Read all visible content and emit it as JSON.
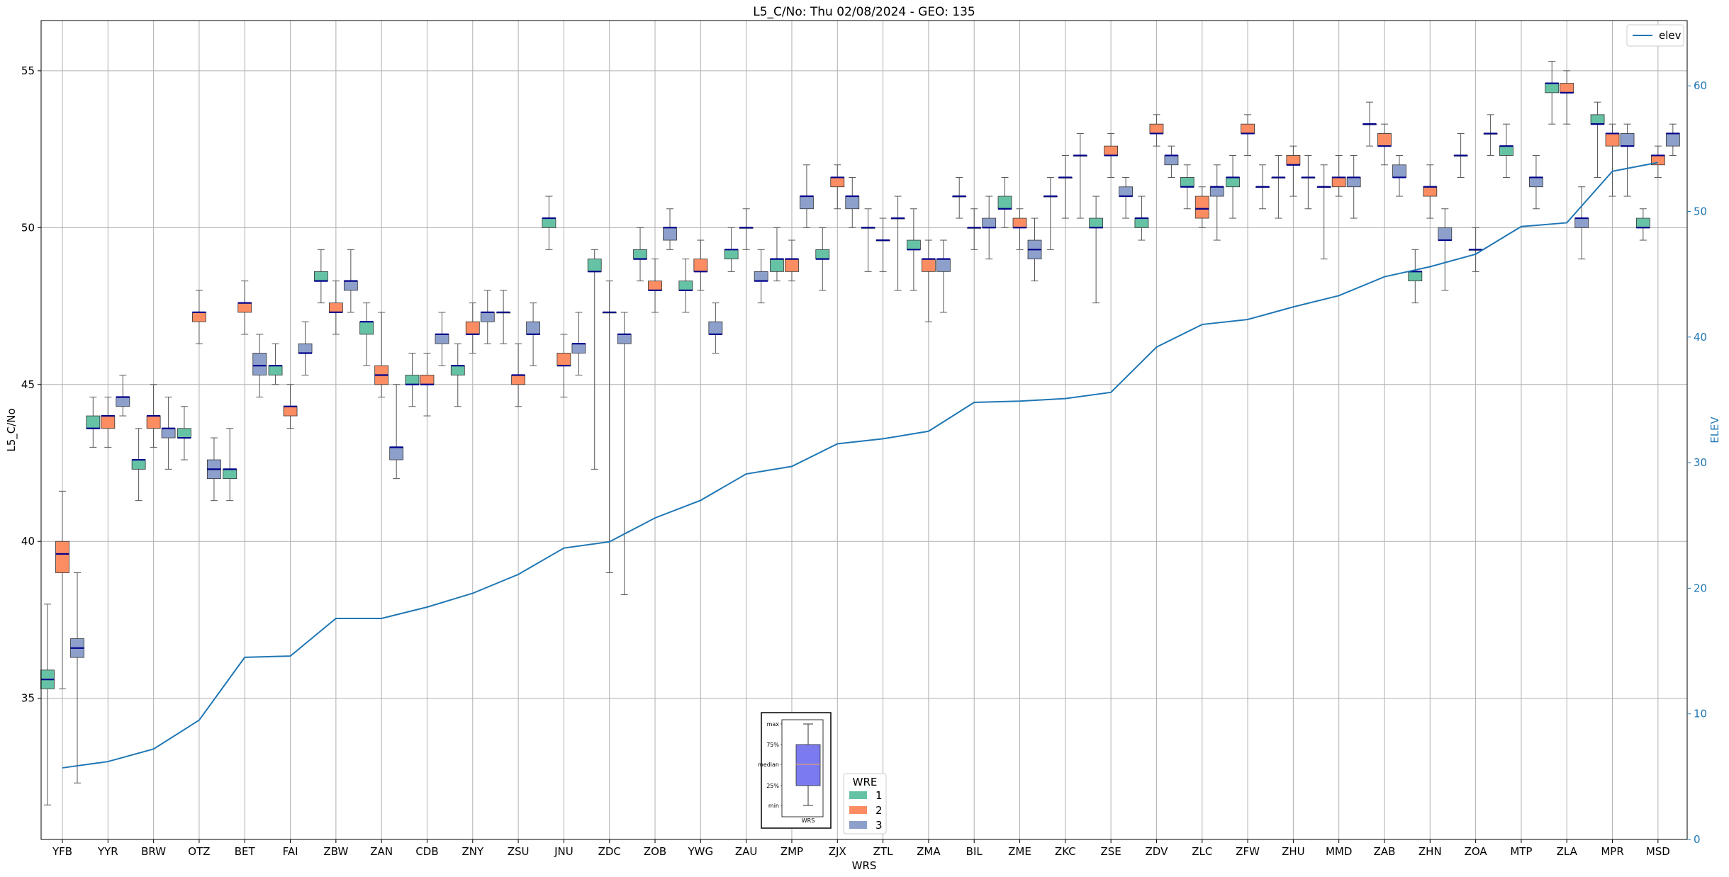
{
  "chart_data": {
    "type": "box",
    "title": "L5_C/No: Thu 02/08/2024 - GEO: 135",
    "xlabel": "WRS",
    "ylabel": "L5_C/No",
    "y2label": "ELEV",
    "ylim": [
      30.5,
      56.6
    ],
    "y2lim": [
      0,
      65.2
    ],
    "yticks": [
      35,
      40,
      45,
      50,
      55
    ],
    "y2ticks": [
      0,
      10,
      20,
      30,
      40,
      50,
      60
    ],
    "grid": true,
    "categories": [
      "YFB",
      "YYR",
      "BRW",
      "OTZ",
      "BET",
      "FAI",
      "ZBW",
      "ZAN",
      "CDB",
      "ZNY",
      "ZSU",
      "JNU",
      "ZDC",
      "ZOB",
      "YWG",
      "ZAU",
      "ZMP",
      "ZJX",
      "ZTL",
      "ZMA",
      "BIL",
      "ZME",
      "ZKC",
      "ZSE",
      "ZDV",
      "ZLC",
      "ZFW",
      "ZHU",
      "MMD",
      "ZAB",
      "ZHN",
      "ZOA",
      "MTP",
      "ZLA",
      "MPR",
      "MSD"
    ],
    "wre_colors": {
      "1": "#66c2a5",
      "2": "#fc8d62",
      "3": "#8da0cb"
    },
    "median_color": "#00008b",
    "boxes": [
      {
        "cat": "YFB",
        "wre": "1",
        "min": 31.6,
        "q1": 35.3,
        "median": 35.6,
        "q3": 35.9,
        "max": 38.0
      },
      {
        "cat": "YFB",
        "wre": "2",
        "min": 35.3,
        "q1": 39.0,
        "median": 39.6,
        "q3": 40.0,
        "max": 41.6
      },
      {
        "cat": "YFB",
        "wre": "3",
        "min": 32.3,
        "q1": 36.3,
        "median": 36.6,
        "q3": 36.9,
        "max": 39.0
      },
      {
        "cat": "YYR",
        "wre": "1",
        "min": 43.0,
        "q1": 43.6,
        "median": 43.6,
        "q3": 44.0,
        "max": 44.6
      },
      {
        "cat": "YYR",
        "wre": "2",
        "min": 43.0,
        "q1": 43.6,
        "median": 44.0,
        "q3": 44.0,
        "max": 44.6
      },
      {
        "cat": "YYR",
        "wre": "3",
        "min": 44.0,
        "q1": 44.3,
        "median": 44.6,
        "q3": 44.6,
        "max": 45.3
      },
      {
        "cat": "BRW",
        "wre": "1",
        "min": 41.3,
        "q1": 42.3,
        "median": 42.6,
        "q3": 42.6,
        "max": 43.6
      },
      {
        "cat": "BRW",
        "wre": "2",
        "min": 43.0,
        "q1": 43.6,
        "median": 44.0,
        "q3": 44.0,
        "max": 45.0
      },
      {
        "cat": "BRW",
        "wre": "3",
        "min": 42.3,
        "q1": 43.3,
        "median": 43.6,
        "q3": 43.6,
        "max": 44.6
      },
      {
        "cat": "OTZ",
        "wre": "1",
        "min": 42.6,
        "q1": 43.3,
        "median": 43.3,
        "q3": 43.6,
        "max": 44.3
      },
      {
        "cat": "OTZ",
        "wre": "2",
        "min": 46.3,
        "q1": 47.0,
        "median": 47.3,
        "q3": 47.3,
        "max": 48.0
      },
      {
        "cat": "OTZ",
        "wre": "3",
        "min": 41.3,
        "q1": 42.0,
        "median": 42.3,
        "q3": 42.6,
        "max": 43.3
      },
      {
        "cat": "BET",
        "wre": "1",
        "min": 41.3,
        "q1": 42.0,
        "median": 42.3,
        "q3": 42.3,
        "max": 43.6
      },
      {
        "cat": "BET",
        "wre": "2",
        "min": 46.6,
        "q1": 47.3,
        "median": 47.6,
        "q3": 47.6,
        "max": 48.3
      },
      {
        "cat": "BET",
        "wre": "3",
        "min": 44.6,
        "q1": 45.3,
        "median": 45.6,
        "q3": 46.0,
        "max": 46.6
      },
      {
        "cat": "FAI",
        "wre": "1",
        "min": 45.0,
        "q1": 45.3,
        "median": 45.6,
        "q3": 45.6,
        "max": 46.3
      },
      {
        "cat": "FAI",
        "wre": "2",
        "min": 43.6,
        "q1": 44.0,
        "median": 44.3,
        "q3": 44.3,
        "max": 45.0
      },
      {
        "cat": "FAI",
        "wre": "3",
        "min": 45.3,
        "q1": 46.0,
        "median": 46.0,
        "q3": 46.3,
        "max": 47.0
      },
      {
        "cat": "ZBW",
        "wre": "1",
        "min": 47.6,
        "q1": 48.3,
        "median": 48.3,
        "q3": 48.6,
        "max": 49.3
      },
      {
        "cat": "ZBW",
        "wre": "2",
        "min": 46.6,
        "q1": 47.3,
        "median": 47.3,
        "q3": 47.6,
        "max": 48.3
      },
      {
        "cat": "ZBW",
        "wre": "3",
        "min": 47.3,
        "q1": 48.0,
        "median": 48.3,
        "q3": 48.3,
        "max": 49.3
      },
      {
        "cat": "ZAN",
        "wre": "1",
        "min": 45.6,
        "q1": 46.6,
        "median": 47.0,
        "q3": 47.0,
        "max": 47.6
      },
      {
        "cat": "ZAN",
        "wre": "2",
        "min": 44.6,
        "q1": 45.0,
        "median": 45.3,
        "q3": 45.6,
        "max": 47.3
      },
      {
        "cat": "ZAN",
        "wre": "3",
        "min": 42.0,
        "q1": 42.6,
        "median": 43.0,
        "q3": 43.0,
        "max": 45.0
      },
      {
        "cat": "CDB",
        "wre": "1",
        "min": 44.3,
        "q1": 45.0,
        "median": 45.0,
        "q3": 45.3,
        "max": 46.0
      },
      {
        "cat": "CDB",
        "wre": "2",
        "min": 44.0,
        "q1": 45.0,
        "median": 45.0,
        "q3": 45.3,
        "max": 46.0
      },
      {
        "cat": "CDB",
        "wre": "3",
        "min": 45.6,
        "q1": 46.3,
        "median": 46.6,
        "q3": 46.6,
        "max": 47.3
      },
      {
        "cat": "ZNY",
        "wre": "1",
        "min": 44.3,
        "q1": 45.3,
        "median": 45.6,
        "q3": 45.6,
        "max": 46.3
      },
      {
        "cat": "ZNY",
        "wre": "2",
        "min": 46.0,
        "q1": 46.6,
        "median": 46.6,
        "q3": 47.0,
        "max": 47.6
      },
      {
        "cat": "ZNY",
        "wre": "3",
        "min": 46.3,
        "q1": 47.0,
        "median": 47.3,
        "q3": 47.3,
        "max": 48.0
      },
      {
        "cat": "ZSU",
        "wre": "1",
        "min": 46.3,
        "q1": 47.3,
        "median": 47.3,
        "q3": 47.3,
        "max": 48.0
      },
      {
        "cat": "ZSU",
        "wre": "2",
        "min": 44.3,
        "q1": 45.0,
        "median": 45.3,
        "q3": 45.3,
        "max": 46.3
      },
      {
        "cat": "ZSU",
        "wre": "3",
        "min": 45.6,
        "q1": 46.6,
        "median": 46.6,
        "q3": 47.0,
        "max": 47.6
      },
      {
        "cat": "JNU",
        "wre": "1",
        "min": 49.3,
        "q1": 50.0,
        "median": 50.3,
        "q3": 50.3,
        "max": 51.0
      },
      {
        "cat": "JNU",
        "wre": "2",
        "min": 44.6,
        "q1": 45.6,
        "median": 45.6,
        "q3": 46.0,
        "max": 46.6
      },
      {
        "cat": "JNU",
        "wre": "3",
        "min": 45.3,
        "q1": 46.0,
        "median": 46.3,
        "q3": 46.3,
        "max": 47.3
      },
      {
        "cat": "ZDC",
        "wre": "1",
        "min": 42.3,
        "q1": 48.6,
        "median": 48.6,
        "q3": 49.0,
        "max": 49.3
      },
      {
        "cat": "ZDC",
        "wre": "2",
        "min": 39.0,
        "q1": 47.3,
        "median": 47.3,
        "q3": 47.3,
        "max": 48.3
      },
      {
        "cat": "ZDC",
        "wre": "3",
        "min": 38.3,
        "q1": 46.3,
        "median": 46.6,
        "q3": 46.6,
        "max": 47.3
      },
      {
        "cat": "ZOB",
        "wre": "1",
        "min": 48.3,
        "q1": 49.0,
        "median": 49.0,
        "q3": 49.3,
        "max": 50.0
      },
      {
        "cat": "ZOB",
        "wre": "2",
        "min": 47.3,
        "q1": 48.0,
        "median": 48.0,
        "q3": 48.3,
        "max": 49.0
      },
      {
        "cat": "ZOB",
        "wre": "3",
        "min": 49.3,
        "q1": 49.6,
        "median": 50.0,
        "q3": 50.0,
        "max": 50.6
      },
      {
        "cat": "YWG",
        "wre": "1",
        "min": 47.3,
        "q1": 48.0,
        "median": 48.0,
        "q3": 48.3,
        "max": 49.0
      },
      {
        "cat": "YWG",
        "wre": "2",
        "min": 48.0,
        "q1": 48.6,
        "median": 48.6,
        "q3": 49.0,
        "max": 49.6
      },
      {
        "cat": "YWG",
        "wre": "3",
        "min": 46.0,
        "q1": 46.6,
        "median": 46.6,
        "q3": 47.0,
        "max": 47.6
      },
      {
        "cat": "ZAU",
        "wre": "1",
        "min": 48.6,
        "q1": 49.0,
        "median": 49.3,
        "q3": 49.3,
        "max": 50.0
      },
      {
        "cat": "ZAU",
        "wre": "2",
        "min": 49.3,
        "q1": 50.0,
        "median": 50.0,
        "q3": 50.0,
        "max": 50.6
      },
      {
        "cat": "ZAU",
        "wre": "3",
        "min": 47.6,
        "q1": 48.3,
        "median": 48.3,
        "q3": 48.6,
        "max": 49.3
      },
      {
        "cat": "ZMP",
        "wre": "1",
        "min": 48.3,
        "q1": 48.6,
        "median": 49.0,
        "q3": 49.0,
        "max": 50.0
      },
      {
        "cat": "ZMP",
        "wre": "2",
        "min": 48.3,
        "q1": 48.6,
        "median": 49.0,
        "q3": 49.0,
        "max": 49.6
      },
      {
        "cat": "ZMP",
        "wre": "3",
        "min": 50.0,
        "q1": 50.6,
        "median": 51.0,
        "q3": 51.0,
        "max": 52.0
      },
      {
        "cat": "ZJX",
        "wre": "1",
        "min": 48.0,
        "q1": 49.0,
        "median": 49.0,
        "q3": 49.3,
        "max": 50.0
      },
      {
        "cat": "ZJX",
        "wre": "2",
        "min": 50.6,
        "q1": 51.3,
        "median": 51.6,
        "q3": 51.6,
        "max": 52.0
      },
      {
        "cat": "ZJX",
        "wre": "3",
        "min": 50.0,
        "q1": 50.6,
        "median": 51.0,
        "q3": 51.0,
        "max": 51.6
      },
      {
        "cat": "ZTL",
        "wre": "1",
        "min": 48.6,
        "q1": 50.0,
        "median": 50.0,
        "q3": 50.0,
        "max": 50.6
      },
      {
        "cat": "ZTL",
        "wre": "2",
        "min": 48.6,
        "q1": 49.6,
        "median": 49.6,
        "q3": 49.6,
        "max": 50.3
      },
      {
        "cat": "ZTL",
        "wre": "3",
        "min": 48.0,
        "q1": 50.3,
        "median": 50.3,
        "q3": 50.3,
        "max": 51.0
      },
      {
        "cat": "ZMA",
        "wre": "1",
        "min": 48.0,
        "q1": 49.3,
        "median": 49.3,
        "q3": 49.6,
        "max": 50.6
      },
      {
        "cat": "ZMA",
        "wre": "2",
        "min": 47.0,
        "q1": 48.6,
        "median": 49.0,
        "q3": 49.0,
        "max": 49.6
      },
      {
        "cat": "ZMA",
        "wre": "3",
        "min": 47.3,
        "q1": 48.6,
        "median": 49.0,
        "q3": 49.0,
        "max": 49.6
      },
      {
        "cat": "BIL",
        "wre": "1",
        "min": 50.3,
        "q1": 51.0,
        "median": 51.0,
        "q3": 51.0,
        "max": 51.6
      },
      {
        "cat": "BIL",
        "wre": "2",
        "min": 49.3,
        "q1": 50.0,
        "median": 50.0,
        "q3": 50.0,
        "max": 50.6
      },
      {
        "cat": "BIL",
        "wre": "3",
        "min": 49.0,
        "q1": 50.0,
        "median": 50.0,
        "q3": 50.3,
        "max": 51.0
      },
      {
        "cat": "ZME",
        "wre": "1",
        "min": 50.0,
        "q1": 50.6,
        "median": 50.6,
        "q3": 51.0,
        "max": 51.6
      },
      {
        "cat": "ZME",
        "wre": "2",
        "min": 49.3,
        "q1": 50.0,
        "median": 50.0,
        "q3": 50.3,
        "max": 50.6
      },
      {
        "cat": "ZME",
        "wre": "3",
        "min": 48.3,
        "q1": 49.0,
        "median": 49.3,
        "q3": 49.6,
        "max": 50.3
      },
      {
        "cat": "ZKC",
        "wre": "1",
        "min": 49.3,
        "q1": 51.0,
        "median": 51.0,
        "q3": 51.0,
        "max": 51.6
      },
      {
        "cat": "ZKC",
        "wre": "2",
        "min": 50.3,
        "q1": 51.6,
        "median": 51.6,
        "q3": 51.6,
        "max": 52.3
      },
      {
        "cat": "ZKC",
        "wre": "3",
        "min": 50.3,
        "q1": 52.3,
        "median": 52.3,
        "q3": 52.3,
        "max": 53.0
      },
      {
        "cat": "ZSE",
        "wre": "1",
        "min": 47.6,
        "q1": 50.0,
        "median": 50.0,
        "q3": 50.3,
        "max": 51.0
      },
      {
        "cat": "ZSE",
        "wre": "2",
        "min": 51.6,
        "q1": 52.3,
        "median": 52.3,
        "q3": 52.6,
        "max": 53.0
      },
      {
        "cat": "ZSE",
        "wre": "3",
        "min": 50.3,
        "q1": 51.0,
        "median": 51.0,
        "q3": 51.3,
        "max": 51.6
      },
      {
        "cat": "ZDV",
        "wre": "1",
        "min": 49.6,
        "q1": 50.0,
        "median": 50.3,
        "q3": 50.3,
        "max": 51.0
      },
      {
        "cat": "ZDV",
        "wre": "2",
        "min": 52.6,
        "q1": 53.0,
        "median": 53.0,
        "q3": 53.3,
        "max": 53.6
      },
      {
        "cat": "ZDV",
        "wre": "3",
        "min": 51.6,
        "q1": 52.0,
        "median": 52.3,
        "q3": 52.3,
        "max": 52.6
      },
      {
        "cat": "ZLC",
        "wre": "1",
        "min": 50.6,
        "q1": 51.3,
        "median": 51.3,
        "q3": 51.6,
        "max": 52.0
      },
      {
        "cat": "ZLC",
        "wre": "2",
        "min": 50.0,
        "q1": 50.3,
        "median": 50.6,
        "q3": 51.0,
        "max": 51.3
      },
      {
        "cat": "ZLC",
        "wre": "3",
        "min": 49.6,
        "q1": 51.0,
        "median": 51.3,
        "q3": 51.3,
        "max": 52.0
      },
      {
        "cat": "ZFW",
        "wre": "1",
        "min": 50.3,
        "q1": 51.3,
        "median": 51.6,
        "q3": 51.6,
        "max": 52.3
      },
      {
        "cat": "ZFW",
        "wre": "2",
        "min": 52.3,
        "q1": 53.0,
        "median": 53.0,
        "q3": 53.3,
        "max": 53.6
      },
      {
        "cat": "ZFW",
        "wre": "3",
        "min": 50.6,
        "q1": 51.3,
        "median": 51.3,
        "q3": 51.3,
        "max": 52.0
      },
      {
        "cat": "ZHU",
        "wre": "1",
        "min": 50.3,
        "q1": 51.6,
        "median": 51.6,
        "q3": 51.6,
        "max": 52.3
      },
      {
        "cat": "ZHU",
        "wre": "2",
        "min": 51.0,
        "q1": 52.0,
        "median": 52.0,
        "q3": 52.3,
        "max": 52.6
      },
      {
        "cat": "ZHU",
        "wre": "3",
        "min": 50.6,
        "q1": 51.6,
        "median": 51.6,
        "q3": 51.6,
        "max": 52.3
      },
      {
        "cat": "MMD",
        "wre": "1",
        "min": 49.0,
        "q1": 51.3,
        "median": 51.3,
        "q3": 51.3,
        "max": 52.0
      },
      {
        "cat": "MMD",
        "wre": "2",
        "min": 51.0,
        "q1": 51.3,
        "median": 51.6,
        "q3": 51.6,
        "max": 52.3
      },
      {
        "cat": "MMD",
        "wre": "3",
        "min": 50.3,
        "q1": 51.3,
        "median": 51.6,
        "q3": 51.6,
        "max": 52.3
      },
      {
        "cat": "ZAB",
        "wre": "1",
        "min": 52.6,
        "q1": 53.3,
        "median": 53.3,
        "q3": 53.3,
        "max": 54.0
      },
      {
        "cat": "ZAB",
        "wre": "2",
        "min": 52.0,
        "q1": 52.6,
        "median": 52.6,
        "q3": 53.0,
        "max": 53.3
      },
      {
        "cat": "ZAB",
        "wre": "3",
        "min": 51.0,
        "q1": 51.6,
        "median": 51.6,
        "q3": 52.0,
        "max": 52.3
      },
      {
        "cat": "ZHN",
        "wre": "1",
        "min": 47.6,
        "q1": 48.3,
        "median": 48.6,
        "q3": 48.6,
        "max": 49.3
      },
      {
        "cat": "ZHN",
        "wre": "2",
        "min": 50.3,
        "q1": 51.0,
        "median": 51.3,
        "q3": 51.3,
        "max": 52.0
      },
      {
        "cat": "ZHN",
        "wre": "3",
        "min": 48.0,
        "q1": 49.6,
        "median": 49.6,
        "q3": 50.0,
        "max": 50.6
      },
      {
        "cat": "ZOA",
        "wre": "1",
        "min": 51.6,
        "q1": 52.3,
        "median": 52.3,
        "q3": 52.3,
        "max": 53.0
      },
      {
        "cat": "ZOA",
        "wre": "2",
        "min": 48.6,
        "q1": 49.3,
        "median": 49.3,
        "q3": 49.3,
        "max": 50.0
      },
      {
        "cat": "ZOA",
        "wre": "3",
        "min": 52.3,
        "q1": 53.0,
        "median": 53.0,
        "q3": 53.0,
        "max": 53.6
      },
      {
        "cat": "MTP",
        "wre": "1",
        "min": 51.6,
        "q1": 52.3,
        "median": 52.6,
        "q3": 52.6,
        "max": 53.3
      },
      {
        "cat": "MTP",
        "wre": "2",
        "min": null,
        "q1": null,
        "median": null,
        "q3": null,
        "max": null
      },
      {
        "cat": "MTP",
        "wre": "3",
        "min": 50.6,
        "q1": 51.3,
        "median": 51.6,
        "q3": 51.6,
        "max": 52.3
      },
      {
        "cat": "ZLA",
        "wre": "1",
        "min": 53.3,
        "q1": 54.3,
        "median": 54.6,
        "q3": 54.6,
        "max": 55.3
      },
      {
        "cat": "ZLA",
        "wre": "2",
        "min": 53.3,
        "q1": 54.3,
        "median": 54.3,
        "q3": 54.6,
        "max": 55.0
      },
      {
        "cat": "ZLA",
        "wre": "3",
        "min": 49.0,
        "q1": 50.0,
        "median": 50.3,
        "q3": 50.3,
        "max": 51.3
      },
      {
        "cat": "MPR",
        "wre": "1",
        "min": 51.6,
        "q1": 53.3,
        "median": 53.3,
        "q3": 53.6,
        "max": 54.0
      },
      {
        "cat": "MPR",
        "wre": "2",
        "min": 51.0,
        "q1": 52.6,
        "median": 53.0,
        "q3": 53.0,
        "max": 53.3
      },
      {
        "cat": "MPR",
        "wre": "3",
        "min": 51.0,
        "q1": 52.6,
        "median": 52.6,
        "q3": 53.0,
        "max": 53.3
      },
      {
        "cat": "MSD",
        "wre": "1",
        "min": 49.6,
        "q1": 50.0,
        "median": 50.0,
        "q3": 50.3,
        "max": 50.6
      },
      {
        "cat": "MSD",
        "wre": "2",
        "min": 51.6,
        "q1": 52.0,
        "median": 52.3,
        "q3": 52.3,
        "max": 52.6
      },
      {
        "cat": "MSD",
        "wre": "3",
        "min": 52.3,
        "q1": 52.6,
        "median": 53.0,
        "q3": 53.0,
        "max": 53.3
      }
    ],
    "elev_series": {
      "name": "elev",
      "color": "#1f77b4",
      "values": [
        5.7,
        6.2,
        7.2,
        9.5,
        14.5,
        14.6,
        17.6,
        17.6,
        18.5,
        19.6,
        21.1,
        23.2,
        23.7,
        25.6,
        27.0,
        29.1,
        29.7,
        31.5,
        31.9,
        32.5,
        34.8,
        34.9,
        35.1,
        35.6,
        39.2,
        41.0,
        41.4,
        42.4,
        43.3,
        44.8,
        45.6,
        46.6,
        48.8,
        49.1,
        53.2,
        53.9
      ]
    },
    "legend": {
      "title": "WRE",
      "entries": [
        "1",
        "2",
        "3"
      ],
      "placement": "lower-center"
    },
    "legend_line": {
      "entries": [
        "elev"
      ],
      "placement": "top-right"
    },
    "box_key": {
      "labels": [
        "max",
        "75%",
        "median",
        "25%",
        "min"
      ],
      "xlabel": "WRS"
    }
  }
}
